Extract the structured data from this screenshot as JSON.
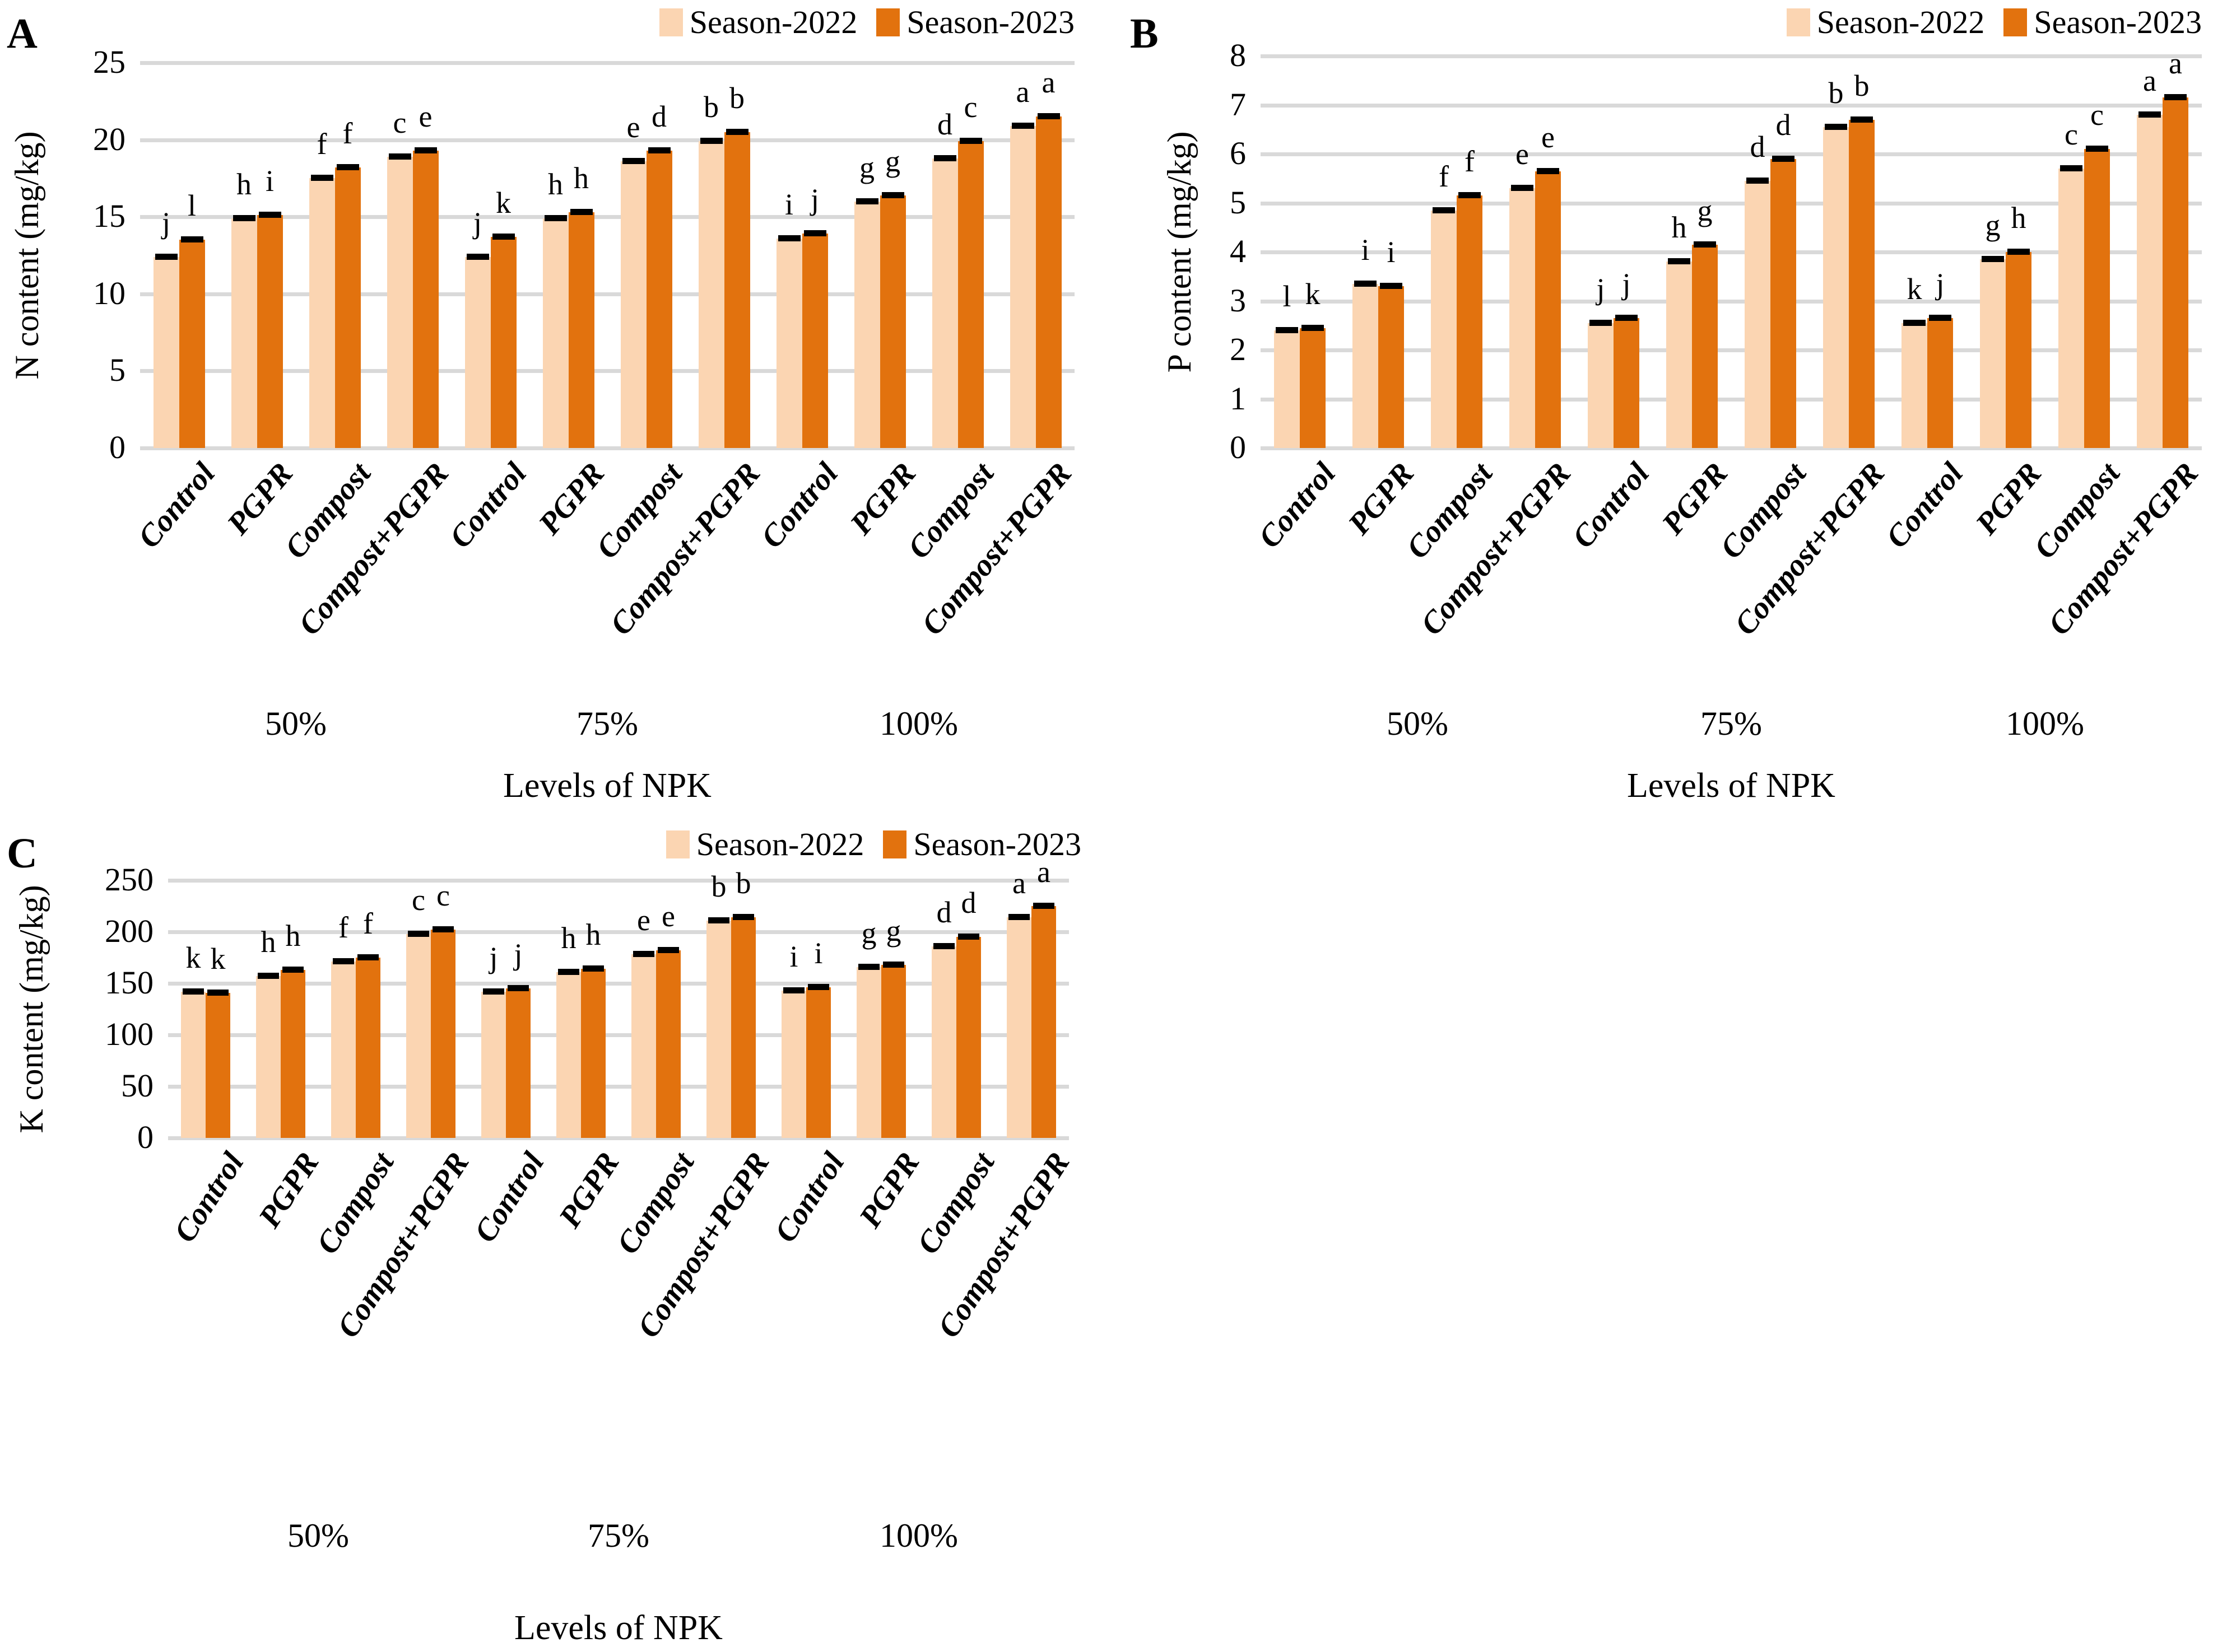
{
  "figure": {
    "legend": {
      "items": [
        {
          "label": "Season-2022",
          "color": "#FBD5B2"
        },
        {
          "label": "Season-2023",
          "color": "#E2720E"
        }
      ]
    },
    "colors": {
      "grid": "#D9D9D9",
      "error_bar": "#000000",
      "text": "#000000",
      "background": "#FFFFFF"
    }
  },
  "chart_data": [
    {
      "type": "bar",
      "panel": "A",
      "ylabel": "N content (mg/kg)",
      "xlabel": "Levels of NPK",
      "ylim": [
        0,
        25
      ],
      "yticks": [
        0,
        5,
        10,
        15,
        20,
        25
      ],
      "grid": "horizontal",
      "legend_position": "top-right",
      "group_labels": [
        "50%",
        "75%",
        "100%"
      ],
      "categories": [
        "Control",
        "PGPR",
        "Compost",
        "Compost+PGPR",
        "Control",
        "PGPR",
        "Compost",
        "Compost+PGPR",
        "Control",
        "PGPR",
        "Compost",
        "Compost+PGPR"
      ],
      "series": [
        {
          "name": "Season-2022",
          "values": [
            12.4,
            14.9,
            17.5,
            18.9,
            12.4,
            14.9,
            18.6,
            19.9,
            13.6,
            16.0,
            18.8,
            20.9
          ],
          "letters": [
            "j",
            "h",
            "f",
            "c",
            "j",
            "h",
            "e",
            "b",
            "i",
            "g",
            "d",
            "a"
          ]
        },
        {
          "name": "Season-2023",
          "values": [
            13.5,
            15.1,
            18.2,
            19.3,
            13.7,
            15.3,
            19.3,
            20.5,
            13.9,
            16.4,
            19.9,
            21.5
          ],
          "letters": [
            "l",
            "i",
            "f",
            "e",
            "k",
            "h",
            "d",
            "b",
            "j",
            "g",
            "c",
            "a"
          ]
        }
      ]
    },
    {
      "type": "bar",
      "panel": "B",
      "ylabel": "P content (mg/kg)",
      "xlabel": "Levels of NPK",
      "ylim": [
        0,
        8
      ],
      "yticks": [
        0,
        1,
        2,
        3,
        4,
        5,
        6,
        7,
        8
      ],
      "grid": "horizontal",
      "legend_position": "top-right",
      "group_labels": [
        "50%",
        "75%",
        "100%"
      ],
      "categories": [
        "Control",
        "PGPR",
        "Compost",
        "Compost+PGPR",
        "Control",
        "PGPR",
        "Compost",
        "Compost+PGPR",
        "Control",
        "PGPR",
        "Compost",
        "Compost+PGPR"
      ],
      "series": [
        {
          "name": "Season-2022",
          "values": [
            2.4,
            3.35,
            4.85,
            5.3,
            2.55,
            3.8,
            5.45,
            6.55,
            2.55,
            3.85,
            5.7,
            6.8
          ],
          "letters": [
            "l",
            "i",
            "f",
            "e",
            "j",
            "h",
            "d",
            "b",
            "k",
            "g",
            "c",
            "a"
          ]
        },
        {
          "name": "Season-2023",
          "values": [
            2.45,
            3.3,
            5.15,
            5.65,
            2.65,
            4.15,
            5.9,
            6.7,
            2.65,
            4.0,
            6.1,
            7.15
          ],
          "letters": [
            "k",
            "i",
            "f",
            "e",
            "j",
            "g",
            "d",
            "b",
            "j",
            "h",
            "c",
            "a"
          ]
        }
      ]
    },
    {
      "type": "bar",
      "panel": "C",
      "ylabel": "K content (mg/kg)",
      "xlabel": "Levels of NPK",
      "ylim": [
        0,
        250
      ],
      "yticks": [
        0,
        50,
        100,
        150,
        200,
        250
      ],
      "grid": "horizontal",
      "legend_position": "top-right",
      "group_labels": [
        "50%",
        "75%",
        "100%"
      ],
      "categories": [
        "Control",
        "PGPR",
        "Compost",
        "Compost+PGPR",
        "Control",
        "PGPR",
        "Compost",
        "Compost+PGPR",
        "Control",
        "PGPR",
        "Compost",
        "Compost+PGPR"
      ],
      "series": [
        {
          "name": "Season-2022",
          "values": [
            142,
            157,
            171,
            198,
            142,
            161,
            178,
            211,
            143,
            166,
            186,
            214
          ],
          "letters": [
            "k",
            "h",
            "f",
            "c",
            "j",
            "h",
            "e",
            "b",
            "i",
            "g",
            "d",
            "a"
          ]
        },
        {
          "name": "Season-2023",
          "values": [
            141,
            163,
            175,
            202,
            145,
            164,
            182,
            214,
            146,
            168,
            195,
            225
          ],
          "letters": [
            "k",
            "h",
            "f",
            "c",
            "j",
            "h",
            "e",
            "b",
            "i",
            "g",
            "d",
            "a"
          ]
        }
      ]
    }
  ]
}
